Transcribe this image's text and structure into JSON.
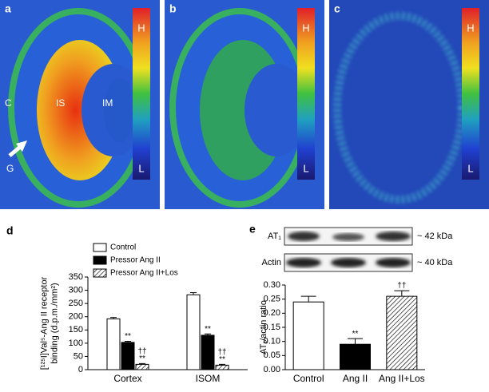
{
  "panels": [
    {
      "letter": "a",
      "scale_high": "H",
      "scale_low": "L",
      "labels": [
        "C",
        "IS",
        "IM",
        "G"
      ]
    },
    {
      "letter": "b",
      "scale_high": "H",
      "scale_low": "L"
    },
    {
      "letter": "c",
      "scale_high": "H",
      "scale_low": "L"
    }
  ],
  "blot": {
    "letter": "e",
    "rows": [
      {
        "name": "AT₁",
        "size": "~ 42 kDa"
      },
      {
        "name": "Actin",
        "size": "~ 40 kDa"
      }
    ]
  },
  "chart_data": [
    {
      "type": "bar",
      "letter": "d",
      "ylabel": [
        "[¹²⁵I]Val⁵-Ang II receptor",
        "binding (d.p.m./mm²)"
      ],
      "categories": [
        "Cortex",
        "ISOM"
      ],
      "series": [
        {
          "name": "Control",
          "color": "#ffffff",
          "values": [
            192,
            283
          ],
          "errors": [
            5,
            8
          ]
        },
        {
          "name": "Pressor Ang II",
          "color": "#000000",
          "values": [
            103,
            130
          ],
          "errors": [
            4,
            5
          ],
          "annotations": [
            [
              "**"
            ],
            [
              "**"
            ]
          ]
        },
        {
          "name": "Pressor Ang II+Los",
          "color": "#ffffff",
          "hatch": true,
          "values": [
            20,
            17
          ],
          "errors": [
            3,
            3
          ],
          "annotations": [
            [
              "††",
              "**"
            ],
            [
              "††",
              "**"
            ]
          ]
        }
      ],
      "ylim": [
        0,
        350
      ],
      "yticks": [
        0,
        50,
        100,
        150,
        200,
        250,
        300,
        350
      ],
      "legend": "top-left"
    },
    {
      "type": "bar",
      "ylabel": [
        "AT₁/actin ratio"
      ],
      "categories": [
        "Control",
        "Ang II",
        "Ang II+Los"
      ],
      "series": [
        {
          "colors": [
            "#ffffff",
            "#000000",
            "#ffffff"
          ],
          "hatched": [
            false,
            false,
            true
          ],
          "values": [
            0.24,
            0.09,
            0.26
          ],
          "errors": [
            0.02,
            0.02,
            0.02
          ],
          "annotations": [
            null,
            [
              "**"
            ],
            [
              "††"
            ]
          ]
        }
      ],
      "ylim": [
        0,
        0.3
      ],
      "yticks": [
        {
          "value": 0,
          "label": "0.00"
        },
        {
          "value": 0.05,
          "label": "0.05"
        },
        {
          "value": 0.1,
          "label": "0.10"
        },
        {
          "value": 0.15,
          "label": "0.15"
        },
        {
          "value": 0.2,
          "label": "0.20"
        },
        {
          "value": 0.25,
          "label": "0.25"
        },
        {
          "value": 0.3,
          "label": "0.30"
        }
      ]
    }
  ]
}
